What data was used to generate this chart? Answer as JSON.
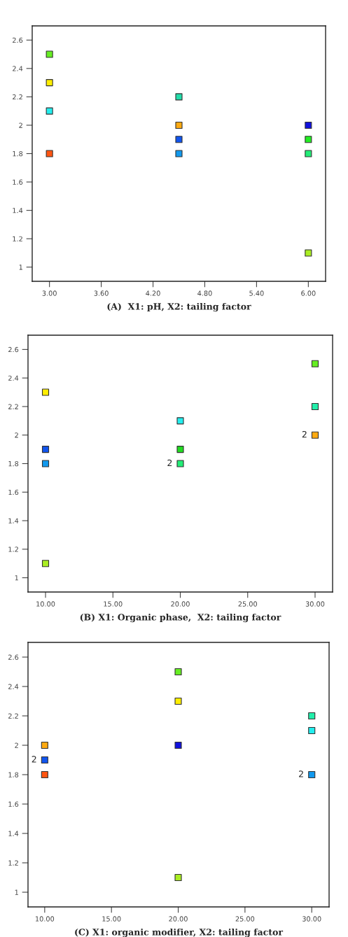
{
  "chart_data": [
    {
      "type": "scatter",
      "xlabel": "(A)  X1: pH, X2: tailing factor",
      "marker": "square",
      "grid": false,
      "xlim": [
        2.8,
        6.2
      ],
      "xticks": [
        {
          "value": 3,
          "label": "3.00"
        },
        {
          "value": 3.6,
          "label": "3.60"
        },
        {
          "value": 4.2,
          "label": "4.20"
        },
        {
          "value": 4.8,
          "label": "4.80"
        },
        {
          "value": 5.4,
          "label": "5.40"
        },
        {
          "value": 6,
          "label": "6.00"
        }
      ],
      "ylim": [
        0.9,
        2.7
      ],
      "yticks": [
        1,
        1.2,
        1.4,
        1.6,
        1.8,
        2,
        2.2,
        2.4,
        2.6
      ],
      "series": [
        {
          "x": [
            3,
            3,
            3,
            3,
            4.5,
            4.5,
            4.5,
            4.5,
            6,
            6,
            6,
            6
          ],
          "values": [
            2.5,
            2.3,
            2.1,
            1.8,
            2.2,
            2.0,
            1.9,
            1.8,
            2.0,
            1.9,
            1.8,
            1.1
          ],
          "colors": [
            "#66ee22",
            "#ffee00",
            "#22eeee",
            "#ff5511",
            "#22ddaa",
            "#ffaa11",
            "#1155ee",
            "#1199ee",
            "#1111dd",
            "#22ee22",
            "#22ee77",
            "#aaee22"
          ]
        }
      ]
    },
    {
      "type": "scatter",
      "xlabel": "(B) X1: Organic phase,  X2: tailing factor",
      "marker": "square",
      "grid": false,
      "xlim": [
        8.7,
        31.3
      ],
      "xticks": [
        {
          "value": 10,
          "label": "10.00"
        },
        {
          "value": 15,
          "label": "15.00"
        },
        {
          "value": 20,
          "label": "20.00"
        },
        {
          "value": 25,
          "label": "25.00"
        },
        {
          "value": 30,
          "label": "30.00"
        }
      ],
      "ylim": [
        0.9,
        2.7
      ],
      "yticks": [
        1,
        1.2,
        1.4,
        1.6,
        1.8,
        2,
        2.2,
        2.4,
        2.6
      ],
      "annotations": [
        {
          "text": "2",
          "x": 20,
          "y": 1.8
        },
        {
          "text": "2",
          "x": 30,
          "y": 2.0
        }
      ],
      "series": [
        {
          "x": [
            10,
            10,
            10,
            10,
            20,
            20,
            20,
            30,
            30,
            30
          ],
          "values": [
            2.3,
            1.9,
            1.8,
            1.1,
            2.1,
            1.9,
            1.8,
            2.5,
            2.2,
            2.0
          ],
          "colors": [
            "#ffee00",
            "#1155ee",
            "#1199ee",
            "#aaee22",
            "#22eeee",
            "#22dd22",
            "#22ee77",
            "#66ee22",
            "#22eeaa",
            "#ffaa11"
          ]
        }
      ]
    },
    {
      "type": "scatter",
      "xlabel": "(C) X1: organic modifier, X2: tailing factor",
      "marker": "square",
      "grid": false,
      "xlim": [
        8.75,
        31.3
      ],
      "xticks": [
        {
          "value": 10,
          "label": "10.00"
        },
        {
          "value": 15,
          "label": "15.00"
        },
        {
          "value": 20,
          "label": "20.00"
        },
        {
          "value": 25,
          "label": "25.00"
        },
        {
          "value": 30,
          "label": "30.00"
        }
      ],
      "ylim": [
        0.9,
        2.7
      ],
      "yticks": [
        1,
        1.2,
        1.4,
        1.6,
        1.8,
        2,
        2.2,
        2.4,
        2.6
      ],
      "annotations": [
        {
          "text": "2",
          "x": 10,
          "y": 1.9
        },
        {
          "text": "2",
          "x": 30,
          "y": 1.8
        }
      ],
      "series": [
        {
          "x": [
            10,
            10,
            10,
            20,
            20,
            20,
            20,
            30,
            30,
            30
          ],
          "values": [
            2.0,
            1.9,
            1.8,
            2.5,
            2.3,
            2.0,
            1.1,
            2.2,
            2.1,
            1.8
          ],
          "colors": [
            "#ffaa11",
            "#1155ee",
            "#ff5511",
            "#66ee22",
            "#ffee00",
            "#1111dd",
            "#aaee22",
            "#22eeaa",
            "#22eeee",
            "#1199ee"
          ]
        }
      ]
    }
  ]
}
